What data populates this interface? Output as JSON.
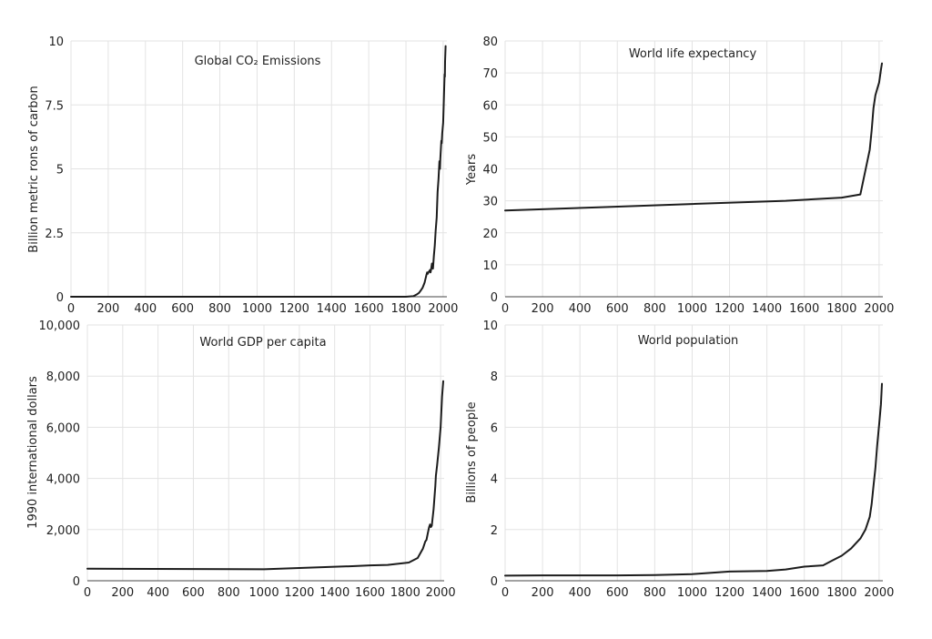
{
  "chart_data": [
    {
      "type": "line",
      "title": "Global CO₂ Emissions",
      "xlabel": "",
      "ylabel": "Billion metric rons of carbon",
      "xlim": [
        0,
        2020
      ],
      "ylim": [
        0,
        10
      ],
      "x_ticks": [
        0,
        200,
        400,
        600,
        800,
        1000,
        1200,
        1400,
        1600,
        1800,
        2000
      ],
      "x_tick_labels": [
        "0",
        "200",
        "400",
        "600",
        "800",
        "1000",
        "1200",
        "1400",
        "1600",
        "1800",
        "2000"
      ],
      "y_ticks": [
        0,
        2.5,
        5,
        7.5,
        10
      ],
      "y_tick_labels": [
        "0",
        "2.5",
        "5",
        "7.5",
        "10"
      ],
      "grid": true,
      "series": [
        {
          "x": [
            0,
            1750,
            1800,
            1840,
            1860,
            1870,
            1880,
            1890,
            1900,
            1905,
            1910,
            1914,
            1918,
            1920,
            1925,
            1930,
            1932,
            1935,
            1940,
            1945,
            1946,
            1950,
            1955,
            1960,
            1965,
            1970,
            1975,
            1980,
            1983,
            1985,
            1990,
            1992,
            1995,
            2000,
            2005,
            2008,
            2009,
            2010,
            2013
          ],
          "y": [
            0,
            0,
            0,
            0.02,
            0.1,
            0.15,
            0.25,
            0.36,
            0.55,
            0.7,
            0.85,
            0.95,
            0.9,
            0.95,
            1.0,
            1.05,
            0.95,
            1.05,
            1.3,
            1.1,
            1.2,
            1.6,
            2.0,
            2.6,
            3.1,
            4.1,
            4.6,
            5.3,
            5.0,
            5.4,
            6.1,
            6.0,
            6.4,
            6.8,
            8.0,
            8.7,
            8.6,
            9.2,
            9.8
          ]
        }
      ]
    },
    {
      "type": "line",
      "title": "World life expectancy",
      "xlabel": "",
      "ylabel": "Years",
      "xlim": [
        0,
        2020
      ],
      "ylim": [
        0,
        80
      ],
      "x_ticks": [
        0,
        200,
        400,
        600,
        800,
        1000,
        1200,
        1400,
        1600,
        1800,
        2000
      ],
      "x_tick_labels": [
        "0",
        "200",
        "400",
        "600",
        "800",
        "1000",
        "1200",
        "1400",
        "1600",
        "1800",
        "2000"
      ],
      "y_ticks": [
        0,
        10,
        20,
        30,
        40,
        50,
        60,
        70,
        80
      ],
      "y_tick_labels": [
        "0",
        "10",
        "20",
        "30",
        "40",
        "50",
        "60",
        "70",
        "80"
      ],
      "grid": true,
      "series": [
        {
          "x": [
            0,
            500,
            1000,
            1500,
            1800,
            1900,
            1950,
            1960,
            1970,
            1980,
            1990,
            2000,
            2010,
            2015
          ],
          "y": [
            27,
            28,
            29,
            30,
            31,
            32,
            46,
            52,
            59,
            63,
            65,
            67,
            71,
            73
          ]
        }
      ]
    },
    {
      "type": "line",
      "title": "World GDP per capita",
      "xlabel": "",
      "ylabel": "1990 international dollars",
      "xlim": [
        0,
        2020
      ],
      "ylim": [
        0,
        10000
      ],
      "x_ticks": [
        0,
        200,
        400,
        600,
        800,
        1000,
        1200,
        1400,
        1600,
        1800,
        2000
      ],
      "x_tick_labels": [
        "0",
        "200",
        "400",
        "600",
        "800",
        "1000",
        "1200",
        "1400",
        "1600",
        "1800",
        "2000"
      ],
      "y_ticks": [
        0,
        2000,
        4000,
        6000,
        8000,
        10000
      ],
      "y_tick_labels": [
        "0",
        "2,000",
        "4,000",
        "6,000",
        "8,000",
        "10,000"
      ],
      "grid": true,
      "series": [
        {
          "x": [
            0,
            1000,
            1500,
            1600,
            1700,
            1820,
            1870,
            1900,
            1913,
            1920,
            1929,
            1935,
            1940,
            1945,
            1950,
            1960,
            1970,
            1973,
            1980,
            1990,
            2000,
            2008,
            2015
          ],
          "y": [
            470,
            450,
            570,
            600,
            620,
            710,
            890,
            1260,
            1530,
            1600,
            1900,
            2100,
            2200,
            2100,
            2150,
            2800,
            3700,
            4100,
            4500,
            5200,
            6000,
            7200,
            7800
          ]
        }
      ]
    },
    {
      "type": "line",
      "title": "World population",
      "xlabel": "",
      "ylabel": "Billions of people",
      "xlim": [
        0,
        2020
      ],
      "ylim": [
        0,
        10
      ],
      "x_ticks": [
        0,
        200,
        400,
        600,
        800,
        1000,
        1200,
        1400,
        1600,
        1800,
        2000
      ],
      "x_tick_labels": [
        "0",
        "200",
        "400",
        "600",
        "800",
        "1000",
        "1200",
        "1400",
        "1600",
        "1800",
        "2000"
      ],
      "y_ticks": [
        0,
        2,
        4,
        6,
        8,
        10
      ],
      "y_tick_labels": [
        "0",
        "2",
        "4",
        "6",
        "8",
        "10"
      ],
      "grid": true,
      "series": [
        {
          "x": [
            0,
            200,
            400,
            600,
            800,
            1000,
            1200,
            1400,
            1500,
            1600,
            1700,
            1750,
            1800,
            1850,
            1900,
            1927,
            1950,
            1960,
            1970,
            1980,
            1990,
            2000,
            2010,
            2015
          ],
          "y": [
            0.2,
            0.21,
            0.21,
            0.21,
            0.22,
            0.26,
            0.36,
            0.38,
            0.44,
            0.55,
            0.6,
            0.79,
            0.98,
            1.26,
            1.65,
            2.0,
            2.5,
            3.0,
            3.7,
            4.4,
            5.3,
            6.1,
            6.9,
            7.7
          ]
        }
      ]
    }
  ]
}
